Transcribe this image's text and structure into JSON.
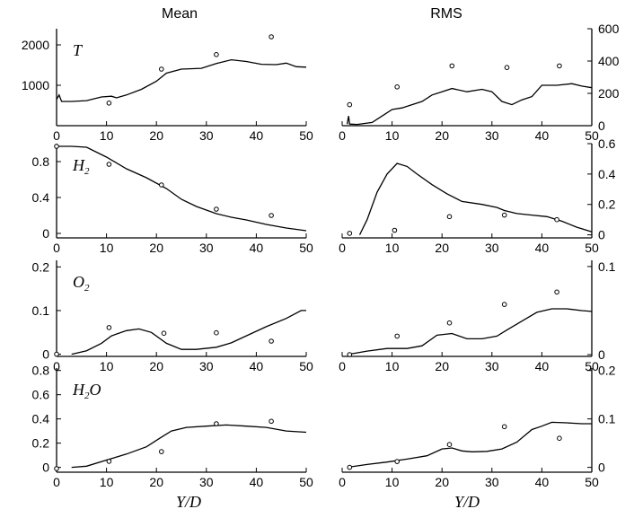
{
  "column_titles": {
    "mean": "Mean",
    "rms": "RMS"
  },
  "x_axis": {
    "label": "Y/D",
    "ticks": [
      "0",
      "10",
      "20",
      "30",
      "40",
      "50"
    ],
    "range": [
      0,
      50
    ]
  },
  "chart_data": [
    {
      "type": "line",
      "variable": "T",
      "sub": "",
      "column": "Mean",
      "ylim": [
        0,
        2400
      ],
      "yticks": [
        "1000",
        "2000"
      ],
      "ytick_values": [
        1000,
        2000
      ],
      "ytick_side": "left",
      "line": [
        [
          0,
          650
        ],
        [
          0.5,
          760
        ],
        [
          1,
          600
        ],
        [
          3,
          600
        ],
        [
          6,
          620
        ],
        [
          9,
          710
        ],
        [
          11,
          730
        ],
        [
          12,
          690
        ],
        [
          14,
          760
        ],
        [
          17,
          900
        ],
        [
          20,
          1100
        ],
        [
          22,
          1300
        ],
        [
          25,
          1400
        ],
        [
          29,
          1420
        ],
        [
          32,
          1540
        ],
        [
          35,
          1630
        ],
        [
          38,
          1590
        ],
        [
          41,
          1520
        ],
        [
          44,
          1510
        ],
        [
          46,
          1550
        ],
        [
          48,
          1460
        ],
        [
          50,
          1450
        ]
      ],
      "points": [
        [
          10.5,
          560
        ],
        [
          21,
          1400
        ],
        [
          32,
          1760
        ],
        [
          43,
          2200
        ]
      ]
    },
    {
      "type": "line",
      "variable": "T",
      "sub": "",
      "column": "RMS",
      "ylim": [
        0,
        600
      ],
      "yticks": [
        "0",
        "200",
        "400",
        "600"
      ],
      "ytick_values": [
        0,
        200,
        400,
        600
      ],
      "ytick_side": "right",
      "line": [
        [
          1,
          10
        ],
        [
          1.3,
          60
        ],
        [
          1.5,
          10
        ],
        [
          3,
          8
        ],
        [
          6,
          20
        ],
        [
          8,
          60
        ],
        [
          10,
          100
        ],
        [
          12,
          110
        ],
        [
          14,
          130
        ],
        [
          16,
          150
        ],
        [
          18,
          190
        ],
        [
          20,
          210
        ],
        [
          22,
          230
        ],
        [
          25,
          210
        ],
        [
          28,
          225
        ],
        [
          30,
          210
        ],
        [
          32,
          150
        ],
        [
          34,
          130
        ],
        [
          36,
          160
        ],
        [
          38,
          180
        ],
        [
          40,
          250
        ],
        [
          43,
          250
        ],
        [
          46,
          260
        ],
        [
          48,
          245
        ],
        [
          50,
          235
        ]
      ],
      "points": [
        [
          1.5,
          130
        ],
        [
          11,
          240
        ],
        [
          22,
          370
        ],
        [
          33,
          360
        ],
        [
          43.5,
          370
        ]
      ]
    },
    {
      "type": "line",
      "variable": "H",
      "sub": "2",
      "column": "Mean",
      "ylim": [
        -0.05,
        1.0
      ],
      "yticks": [
        "0",
        "0.4",
        "0.8"
      ],
      "ytick_values": [
        0,
        0.4,
        0.8
      ],
      "ytick_side": "left",
      "line": [
        [
          0,
          0.97
        ],
        [
          3,
          0.97
        ],
        [
          6,
          0.96
        ],
        [
          10,
          0.85
        ],
        [
          14,
          0.72
        ],
        [
          18,
          0.62
        ],
        [
          22,
          0.5
        ],
        [
          25,
          0.38
        ],
        [
          28,
          0.3
        ],
        [
          32,
          0.22
        ],
        [
          35,
          0.18
        ],
        [
          38,
          0.15
        ],
        [
          42,
          0.1
        ],
        [
          46,
          0.06
        ],
        [
          50,
          0.03
        ]
      ],
      "points": [
        [
          0,
          0.97
        ],
        [
          10.5,
          0.77
        ],
        [
          21,
          0.54
        ],
        [
          32,
          0.27
        ],
        [
          43,
          0.2
        ]
      ]
    },
    {
      "type": "line",
      "variable": "H",
      "sub": "2",
      "column": "RMS",
      "ylim": [
        -0.02,
        0.6
      ],
      "yticks": [
        "0",
        "0.2",
        "0.4",
        "0.6"
      ],
      "ytick_values": [
        0,
        0.2,
        0.4,
        0.6
      ],
      "ytick_side": "right",
      "line": [
        [
          3.5,
          0
        ],
        [
          5,
          0.1
        ],
        [
          7,
          0.28
        ],
        [
          9,
          0.4
        ],
        [
          11,
          0.47
        ],
        [
          13,
          0.45
        ],
        [
          15,
          0.4
        ],
        [
          18,
          0.33
        ],
        [
          21,
          0.27
        ],
        [
          24,
          0.22
        ],
        [
          28,
          0.2
        ],
        [
          31,
          0.18
        ],
        [
          32.5,
          0.16
        ],
        [
          35,
          0.14
        ],
        [
          38,
          0.13
        ],
        [
          41,
          0.12
        ],
        [
          44,
          0.09
        ],
        [
          47,
          0.05
        ],
        [
          50,
          0.02
        ]
      ],
      "points": [
        [
          1.5,
          0.01
        ],
        [
          10.5,
          0.03
        ],
        [
          21.5,
          0.12
        ],
        [
          32.5,
          0.13
        ],
        [
          43,
          0.1
        ]
      ]
    },
    {
      "type": "line",
      "variable": "O",
      "sub": "2",
      "column": "Mean",
      "ylim": [
        -0.005,
        0.215
      ],
      "yticks": [
        "0",
        "0.1",
        "0.2"
      ],
      "ytick_values": [
        0,
        0.1,
        0.2
      ],
      "ytick_side": "left",
      "line": [
        [
          3,
          0
        ],
        [
          6,
          0.008
        ],
        [
          9,
          0.025
        ],
        [
          11,
          0.042
        ],
        [
          14,
          0.054
        ],
        [
          16.5,
          0.058
        ],
        [
          19,
          0.05
        ],
        [
          22,
          0.025
        ],
        [
          25,
          0.011
        ],
        [
          28,
          0.011
        ],
        [
          32,
          0.016
        ],
        [
          35,
          0.026
        ],
        [
          38,
          0.042
        ],
        [
          42,
          0.063
        ],
        [
          46,
          0.082
        ],
        [
          49,
          0.1
        ],
        [
          50,
          0.1
        ]
      ],
      "points": [
        [
          0,
          0
        ],
        [
          10.5,
          0.061
        ],
        [
          21.5,
          0.048
        ],
        [
          32,
          0.049
        ],
        [
          43,
          0.03
        ]
      ]
    },
    {
      "type": "line",
      "variable": "O",
      "sub": "2",
      "column": "RMS",
      "ylim": [
        -0.002,
        0.107
      ],
      "yticks": [
        "0",
        "0.1"
      ],
      "ytick_values": [
        0,
        0.1
      ],
      "ytick_side": "right",
      "line": [
        [
          1,
          0
        ],
        [
          5,
          0.004
        ],
        [
          9,
          0.007
        ],
        [
          13,
          0.007
        ],
        [
          16,
          0.01
        ],
        [
          19,
          0.022
        ],
        [
          22,
          0.024
        ],
        [
          25,
          0.018
        ],
        [
          28,
          0.018
        ],
        [
          31,
          0.021
        ],
        [
          33,
          0.028
        ],
        [
          36,
          0.038
        ],
        [
          39,
          0.048
        ],
        [
          42,
          0.052
        ],
        [
          45,
          0.052
        ],
        [
          48,
          0.05
        ],
        [
          50,
          0.049
        ]
      ],
      "points": [
        [
          1.5,
          0
        ],
        [
          11,
          0.021
        ],
        [
          21.5,
          0.036
        ],
        [
          32.5,
          0.057
        ],
        [
          43,
          0.071
        ]
      ]
    },
    {
      "type": "line",
      "variable": "H",
      "sub": "2",
      "suffix": "O",
      "column": "Mean",
      "ylim": [
        -0.04,
        0.82
      ],
      "yticks": [
        "0",
        "0.2",
        "0.4",
        "0.6",
        "0.8"
      ],
      "ytick_values": [
        0,
        0.2,
        0.4,
        0.6,
        0.8
      ],
      "ytick_side": "left",
      "line": [
        [
          3,
          0
        ],
        [
          6,
          0.01
        ],
        [
          10,
          0.06
        ],
        [
          14,
          0.11
        ],
        [
          18,
          0.17
        ],
        [
          21,
          0.25
        ],
        [
          23,
          0.3
        ],
        [
          26,
          0.33
        ],
        [
          30,
          0.34
        ],
        [
          34,
          0.35
        ],
        [
          38,
          0.34
        ],
        [
          42,
          0.33
        ],
        [
          46,
          0.3
        ],
        [
          50,
          0.29
        ]
      ],
      "points": [
        [
          0,
          -0.01
        ],
        [
          10.5,
          0.05
        ],
        [
          21,
          0.13
        ],
        [
          32,
          0.36
        ],
        [
          43,
          0.38
        ]
      ]
    },
    {
      "type": "line",
      "variable": "H",
      "sub": "2",
      "suffix": "O",
      "column": "RMS",
      "ylim": [
        -0.01,
        0.205
      ],
      "yticks": [
        "0",
        "0.1",
        "0.2"
      ],
      "ytick_values": [
        0,
        0.1,
        0.2
      ],
      "ytick_side": "right",
      "line": [
        [
          1,
          0
        ],
        [
          5,
          0.006
        ],
        [
          9,
          0.011
        ],
        [
          13,
          0.017
        ],
        [
          17,
          0.024
        ],
        [
          20,
          0.038
        ],
        [
          22,
          0.04
        ],
        [
          24,
          0.034
        ],
        [
          26,
          0.032
        ],
        [
          29,
          0.033
        ],
        [
          32,
          0.038
        ],
        [
          35,
          0.052
        ],
        [
          38,
          0.078
        ],
        [
          40,
          0.085
        ],
        [
          42,
          0.093
        ],
        [
          45,
          0.092
        ],
        [
          48,
          0.09
        ],
        [
          50,
          0.09
        ]
      ],
      "points": [
        [
          1.5,
          0
        ],
        [
          11,
          0.012
        ],
        [
          21.5,
          0.047
        ],
        [
          32.5,
          0.084
        ],
        [
          43.5,
          0.06
        ]
      ]
    }
  ]
}
